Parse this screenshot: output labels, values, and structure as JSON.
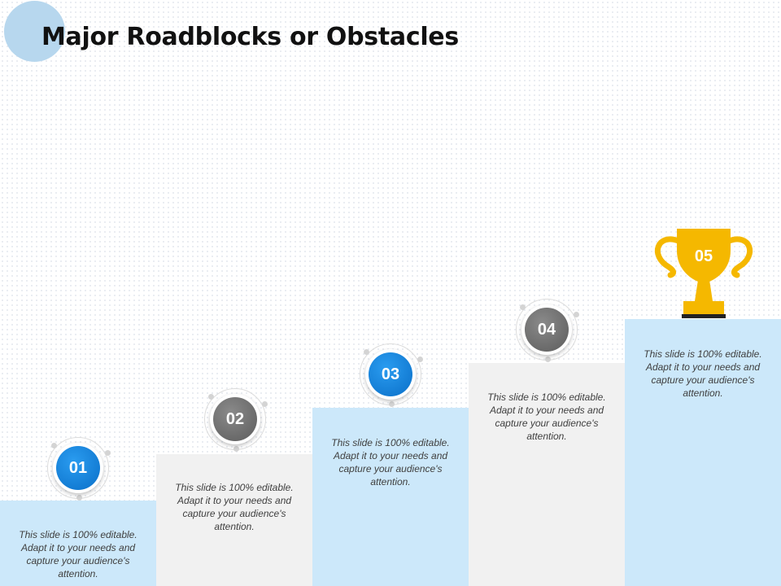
{
  "slide": {
    "title": "Major Roadblocks or Obstacles"
  },
  "colors": {
    "step_blue": "#cce8fa",
    "step_gray": "#f1f1f1",
    "badge_blue": "#0a86e0",
    "badge_gray": "#707070",
    "trophy_gold": "#f5b800"
  },
  "steps": [
    {
      "number": "01",
      "text": "This slide is 100% editable. Adapt it to your needs and capture your audience's attention."
    },
    {
      "number": "02",
      "text": "This slide is 100% editable. Adapt it to your needs and capture your audience's attention."
    },
    {
      "number": "03",
      "text": "This slide is 100% editable. Adapt it to your needs and capture your audience's attention."
    },
    {
      "number": "04",
      "text": "This slide is 100% editable. Adapt it to your needs and capture your audience's attention."
    },
    {
      "number": "05",
      "text": "This slide is 100% editable. Adapt it to your needs and capture your audience's attention.",
      "icon": "trophy-icon"
    }
  ]
}
